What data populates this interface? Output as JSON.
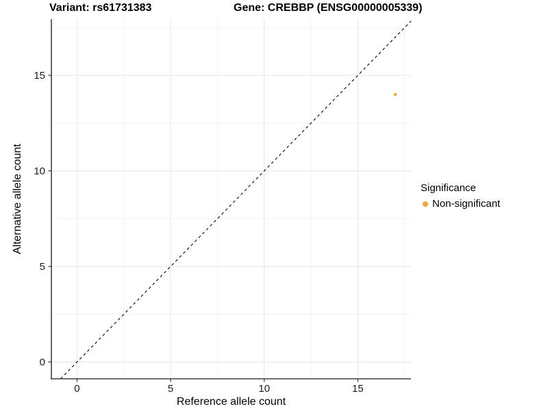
{
  "header": {
    "variant_title": "Variant: rs61731383",
    "gene_title": "Gene: CREBBP (ENSG00000005339)"
  },
  "chart_data": {
    "type": "scatter",
    "xlabel": "Reference allele count",
    "ylabel": "Alternative allele count",
    "xlim": [
      -1.37,
      17.84
    ],
    "ylim": [
      -0.88,
      17.94
    ],
    "x_ticks": [
      0,
      5,
      10,
      15
    ],
    "y_ticks": [
      0,
      5,
      10,
      15
    ],
    "x_minor_ticks": [
      2.5,
      7.5,
      12.5,
      17.5
    ],
    "y_minor_ticks": [
      2.5,
      7.5,
      12.5,
      17.5
    ],
    "grid": "major+minor",
    "identity_line": {
      "slope": 1,
      "intercept": 0,
      "style": "dashed",
      "color": "#000000"
    },
    "series": [
      {
        "name": "Non-significant",
        "color": "#FAA43A",
        "points": [
          {
            "x": 17,
            "y": 14
          }
        ]
      }
    ],
    "legend": {
      "title": "Significance",
      "position": "right"
    }
  },
  "colors": {
    "background": "#ffffff",
    "grid_major": "#e6e6e6",
    "grid_minor": "#f2f2f2",
    "axis_line": "#3f3f3f",
    "tick_mark": "#333333",
    "tick_label": "#1a1a1a",
    "axis_title": "#000000",
    "point": "#FAA43A",
    "identity_line": "#000000"
  }
}
